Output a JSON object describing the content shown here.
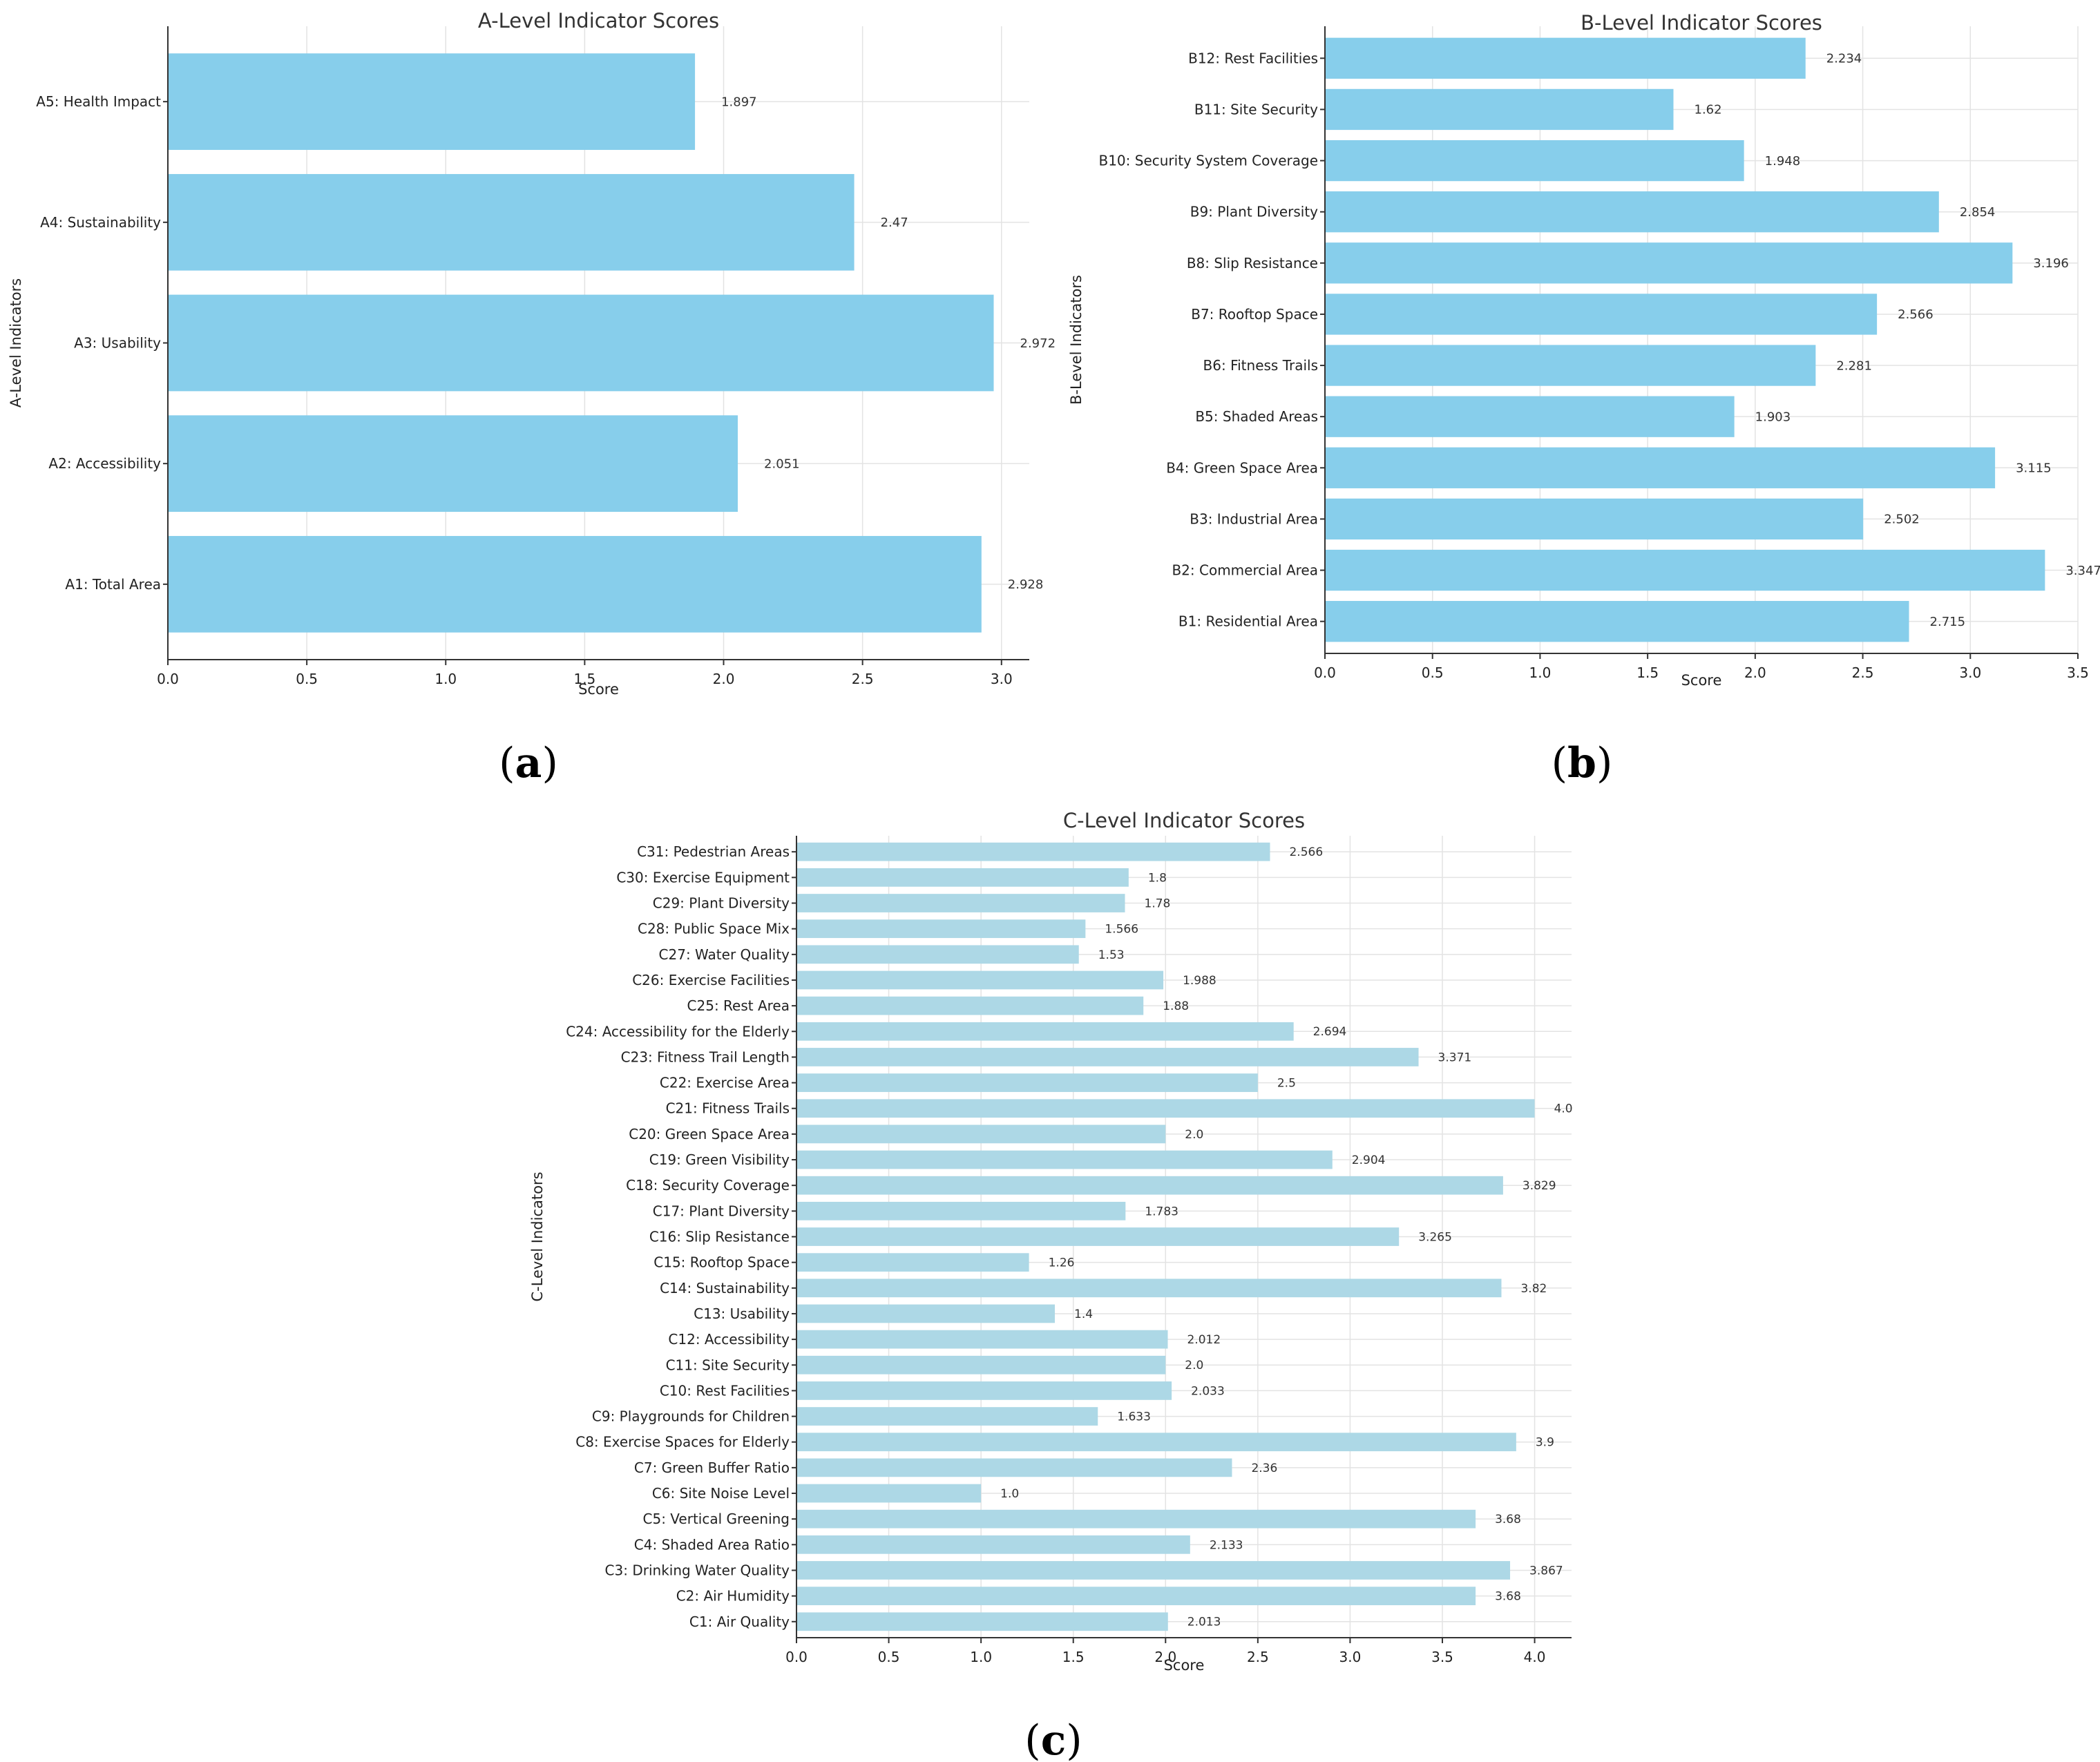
{
  "chart_data": [
    {
      "type": "bar",
      "orientation": "horizontal",
      "panel_label": "(a)",
      "title": "A-Level Indicator Scores",
      "xlabel": "Score",
      "ylabel": "A-Level Indicators",
      "xlim": [
        0,
        3.1
      ],
      "xticks": [
        "0.0",
        "0.5",
        "1.0",
        "1.5",
        "2.0",
        "2.5",
        "3.0"
      ],
      "xtick_values": [
        0,
        0.5,
        1.0,
        1.5,
        2.0,
        2.5,
        3.0
      ],
      "grid": true,
      "bar_color": "#87ceeb",
      "categories": [
        "A1: Total Area",
        "A2: Accessibility",
        "A3: Usability",
        "A4: Sustainability",
        "A5: Health Impact"
      ],
      "values": [
        2.928,
        2.051,
        2.972,
        2.47,
        1.897
      ],
      "value_labels": [
        "2.928",
        "2.051",
        "2.972",
        "2.47",
        "1.897"
      ]
    },
    {
      "type": "bar",
      "orientation": "horizontal",
      "panel_label": "(b)",
      "title": "B-Level Indicator Scores",
      "xlabel": "Score",
      "ylabel": "B-Level Indicators",
      "xlim": [
        0,
        3.5
      ],
      "xticks": [
        "0.0",
        "0.5",
        "1.0",
        "1.5",
        "2.0",
        "2.5",
        "3.0",
        "3.5"
      ],
      "xtick_values": [
        0,
        0.5,
        1.0,
        1.5,
        2.0,
        2.5,
        3.0,
        3.5
      ],
      "grid": true,
      "bar_color": "#87ceeb",
      "categories": [
        "B1: Residential Area",
        "B2: Commercial Area",
        "B3: Industrial Area",
        "B4: Green Space Area",
        "B5: Shaded Areas",
        "B6: Fitness Trails",
        "B7: Rooftop Space",
        "B8: Slip Resistance",
        "B9: Plant Diversity",
        "B10: Security System Coverage",
        "B11: Site Security",
        "B12: Rest Facilities"
      ],
      "values": [
        2.715,
        3.347,
        2.502,
        3.115,
        1.903,
        2.281,
        2.566,
        3.196,
        2.854,
        1.948,
        1.62,
        2.234
      ],
      "value_labels": [
        "2.715",
        "3.347",
        "2.502",
        "3.115",
        "1.903",
        "2.281",
        "2.566",
        "3.196",
        "2.854",
        "1.948",
        "1.62",
        "2.234"
      ]
    },
    {
      "type": "bar",
      "orientation": "horizontal",
      "panel_label": "(c)",
      "title": "C-Level Indicator Scores",
      "xlabel": "Score",
      "ylabel": "C-Level Indicators",
      "xlim": [
        0,
        4.2
      ],
      "xticks": [
        "0.0",
        "0.5",
        "1.0",
        "1.5",
        "2.0",
        "2.5",
        "3.0",
        "3.5",
        "4.0"
      ],
      "xtick_values": [
        0,
        0.5,
        1.0,
        1.5,
        2.0,
        2.5,
        3.0,
        3.5,
        4.0
      ],
      "grid": true,
      "bar_color": "#add8e6",
      "categories": [
        "C1: Air Quality",
        "C2: Air Humidity",
        "C3: Drinking Water Quality",
        "C4: Shaded Area Ratio",
        "C5: Vertical Greening",
        "C6: Site Noise Level",
        "C7: Green Buffer Ratio",
        "C8: Exercise Spaces for Elderly",
        "C9: Playgrounds for Children",
        "C10: Rest Facilities",
        "C11: Site Security",
        "C12: Accessibility",
        "C13: Usability",
        "C14: Sustainability",
        "C15: Rooftop Space",
        "C16: Slip Resistance",
        "C17: Plant Diversity",
        "C18: Security Coverage",
        "C19: Green Visibility",
        "C20: Green Space Area",
        "C21: Fitness Trails",
        "C22: Exercise Area",
        "C23: Fitness Trail Length",
        "C24: Accessibility for the Elderly",
        "C25: Rest Area",
        "C26: Exercise Facilities",
        "C27: Water Quality",
        "C28: Public Space Mix",
        "C29: Plant Diversity",
        "C30: Exercise Equipment",
        "C31: Pedestrian Areas"
      ],
      "values": [
        2.013,
        3.68,
        3.867,
        2.133,
        3.68,
        1.0,
        2.36,
        3.9,
        1.633,
        2.033,
        2.0,
        2.012,
        1.4,
        3.82,
        1.26,
        3.265,
        1.783,
        3.829,
        2.904,
        2.0,
        4.0,
        2.5,
        3.371,
        2.694,
        1.88,
        1.988,
        1.53,
        1.566,
        1.78,
        1.8,
        2.566
      ],
      "value_labels": [
        "2.013",
        "3.68",
        "3.867",
        "2.133",
        "3.68",
        "1.0",
        "2.36",
        "3.9",
        "1.633",
        "2.033",
        "2.0",
        "2.012",
        "1.4",
        "3.82",
        "1.26",
        "3.265",
        "1.783",
        "3.829",
        "2.904",
        "2.0",
        "4.0",
        "2.5",
        "3.371",
        "2.694",
        "1.88",
        "1.988",
        "1.53",
        "1.566",
        "1.78",
        "1.8",
        "2.566"
      ]
    }
  ]
}
